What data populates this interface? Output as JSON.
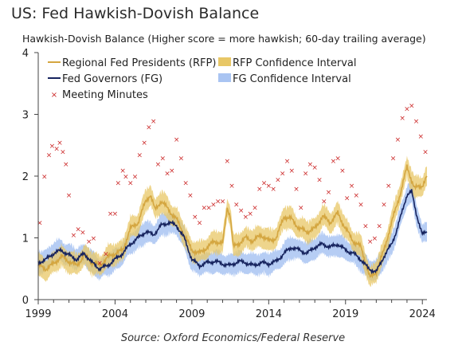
{
  "title": "US: Fed Hawkish-Dovish Balance",
  "subtitle": "Hawkish-Dovish Balance (Higher score = more hawkish; 60-day trailing average)",
  "source": "Source: Oxford Economics/Federal Reserve",
  "colors": {
    "rfp_line": "#d4a640",
    "rfp_band": "#e8c766",
    "fg_line": "#16235e",
    "fg_band": "#a9c4f2",
    "minutes": "#cc2a2a",
    "axis": "#444444"
  },
  "chart_data": {
    "type": "line",
    "title": "US: Fed Hawkish-Dovish Balance",
    "subtitle": "Hawkish-Dovish Balance (Higher score = more hawkish; 60-day trailing average)",
    "xlabel": "",
    "ylabel": "",
    "xlim": [
      1999,
      2024.3
    ],
    "ylim": [
      0,
      4
    ],
    "x_ticks": [
      1999,
      2004,
      2009,
      2014,
      2019,
      2024
    ],
    "y_ticks": [
      0,
      1,
      2,
      3,
      4
    ],
    "legend": [
      "Regional Fed Presidents (RFP)",
      "RFP Confidence Interval",
      "Fed Governors (FG)",
      "FG Confidence Interval",
      "Meeting Minutes"
    ],
    "legend_position": "top-left",
    "grid": false,
    "series": [
      {
        "name": "Regional Fed Presidents (RFP)",
        "x": [
          1999,
          1999.5,
          2000,
          2000.5,
          2001,
          2001.5,
          2002,
          2002.5,
          2003,
          2003.5,
          2004,
          2004.5,
          2005,
          2005.5,
          2006,
          2006.3,
          2006.6,
          2007,
          2007.5,
          2008,
          2008.5,
          2009,
          2009.5,
          2010,
          2010.5,
          2011,
          2011.3,
          2011.5,
          2011.7,
          2012,
          2012.5,
          2013,
          2013.5,
          2014,
          2014.5,
          2015,
          2015.5,
          2016,
          2016.5,
          2017,
          2017.5,
          2018,
          2018.5,
          2019,
          2019.5,
          2020,
          2020.3,
          2020.6,
          2021,
          2021.5,
          2022,
          2022.3,
          2022.6,
          2023,
          2023.5,
          2024,
          2024.3
        ],
        "y": [
          0.55,
          0.5,
          0.58,
          0.7,
          0.62,
          0.55,
          0.72,
          0.6,
          0.55,
          0.68,
          0.75,
          0.8,
          1.15,
          1.25,
          1.6,
          1.7,
          1.45,
          1.6,
          1.45,
          1.3,
          1.05,
          0.8,
          0.75,
          0.85,
          0.95,
          0.9,
          1.5,
          1.35,
          0.85,
          0.9,
          1.0,
          0.95,
          1.05,
          0.95,
          1.0,
          1.35,
          1.3,
          1.15,
          1.1,
          1.15,
          1.35,
          1.25,
          1.4,
          1.15,
          0.95,
          0.85,
          0.6,
          0.35,
          0.45,
          0.8,
          1.25,
          1.5,
          1.75,
          2.15,
          1.8,
          1.85,
          2.0
        ]
      },
      {
        "name": "Fed Governors (FG)",
        "x": [
          1999,
          1999.5,
          2000,
          2000.5,
          2001,
          2001.5,
          2002,
          2002.5,
          2003,
          2003.5,
          2004,
          2004.5,
          2005,
          2005.5,
          2006,
          2006.5,
          2007,
          2007.5,
          2008,
          2008.5,
          2009,
          2009.5,
          2010,
          2010.5,
          2011,
          2011.5,
          2012,
          2012.5,
          2013,
          2013.5,
          2014,
          2014.5,
          2015,
          2015.5,
          2016,
          2016.5,
          2017,
          2017.5,
          2018,
          2018.5,
          2019,
          2019.5,
          2020,
          2020.5,
          2021,
          2021.5,
          2022,
          2022.3,
          2022.6,
          2023,
          2023.3,
          2023.6,
          2024,
          2024.3
        ],
        "y": [
          0.6,
          0.65,
          0.75,
          0.8,
          0.72,
          0.65,
          0.75,
          0.6,
          0.5,
          0.55,
          0.65,
          0.75,
          0.9,
          1.0,
          1.1,
          1.05,
          1.2,
          1.25,
          1.2,
          1.0,
          0.65,
          0.55,
          0.6,
          0.62,
          0.58,
          0.55,
          0.62,
          0.6,
          0.55,
          0.6,
          0.58,
          0.62,
          0.75,
          0.85,
          0.8,
          0.75,
          0.85,
          0.9,
          0.85,
          0.9,
          0.8,
          0.75,
          0.65,
          0.5,
          0.45,
          0.7,
          0.9,
          1.1,
          1.35,
          1.7,
          1.75,
          1.4,
          1.05,
          1.1
        ]
      },
      {
        "name": "Meeting Minutes",
        "x": [
          1999.1,
          1999.4,
          1999.7,
          1999.9,
          2000.2,
          2000.4,
          2000.6,
          2000.8,
          2001.0,
          2001.3,
          2001.6,
          2001.9,
          2002.3,
          2002.6,
          2003.0,
          2003.4,
          2003.7,
          2004.0,
          2004.2,
          2004.5,
          2004.7,
          2005.0,
          2005.3,
          2005.6,
          2005.9,
          2006.2,
          2006.5,
          2006.8,
          2007.1,
          2007.4,
          2007.7,
          2008.0,
          2008.3,
          2008.6,
          2008.9,
          2009.2,
          2009.5,
          2009.8,
          2010.1,
          2010.4,
          2010.7,
          2011.0,
          2011.3,
          2011.6,
          2011.9,
          2012.2,
          2012.5,
          2012.8,
          2013.1,
          2013.4,
          2013.7,
          2014.0,
          2014.3,
          2014.6,
          2014.9,
          2015.2,
          2015.5,
          2015.8,
          2016.1,
          2016.4,
          2016.7,
          2017.0,
          2017.3,
          2017.6,
          2017.9,
          2018.2,
          2018.5,
          2018.8,
          2019.1,
          2019.4,
          2019.7,
          2020.0,
          2020.3,
          2020.6,
          2020.9,
          2021.2,
          2021.5,
          2021.8,
          2022.1,
          2022.4,
          2022.7,
          2023.0,
          2023.3,
          2023.6,
          2023.9,
          2024.2
        ],
        "y": [
          1.25,
          2.0,
          2.35,
          2.5,
          2.45,
          2.55,
          2.4,
          2.2,
          1.7,
          1.05,
          1.15,
          1.1,
          0.95,
          1.0,
          0.6,
          0.75,
          1.4,
          1.4,
          1.9,
          2.1,
          2.0,
          1.9,
          2.0,
          2.35,
          2.55,
          2.8,
          2.9,
          2.2,
          2.3,
          2.05,
          2.1,
          2.6,
          2.3,
          1.9,
          1.7,
          1.35,
          1.25,
          1.5,
          1.5,
          1.55,
          1.6,
          1.6,
          2.25,
          1.85,
          1.55,
          1.45,
          1.35,
          1.4,
          1.5,
          1.8,
          1.9,
          1.85,
          1.8,
          1.95,
          2.05,
          2.25,
          2.1,
          1.8,
          1.5,
          2.05,
          2.2,
          2.15,
          1.95,
          1.6,
          1.75,
          2.25,
          2.3,
          2.1,
          1.65,
          1.85,
          1.7,
          1.55,
          1.2,
          0.95,
          1.0,
          1.2,
          1.55,
          1.85,
          2.3,
          2.6,
          2.95,
          3.1,
          3.15,
          2.9,
          2.65,
          2.4
        ]
      }
    ]
  }
}
